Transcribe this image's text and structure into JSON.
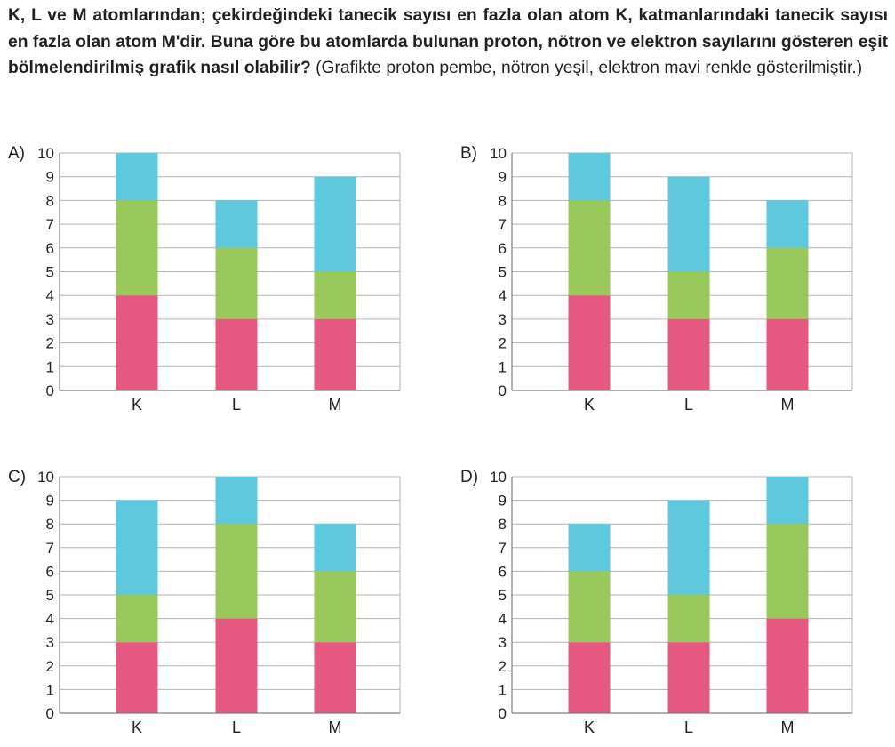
{
  "question": {
    "bold_text": "K, L ve M atomlarından; çekirdeğindeki tanecik sayısı en fazla olan atom K, katmanlarındaki tanecik sayısı en fazla olan atom M'dir. Buna göre bu atomlarda bulunan proton, nötron ve elektron sayılarını gösteren eşit bölmelendirilmiş grafik nasıl olabilir?",
    "normal_text": " (Grafikte proton pembe, nötron yeşil, elektron mavi renkle gösterilmiştir.)"
  },
  "colors": {
    "proton": "#e5587f",
    "neutron": "#99c95b",
    "electron": "#5ec8dc",
    "grid": "#b3b3b3",
    "axis": "#7f7f7f"
  },
  "chart_data": [
    {
      "type": "bar",
      "stacked": true,
      "option_label": "A)",
      "categories": [
        "K",
        "L",
        "M"
      ],
      "ylim": [
        0,
        10
      ],
      "yticks": [
        "0",
        "1",
        "2",
        "3",
        "4",
        "5",
        "6",
        "7",
        "8",
        "9",
        "10"
      ],
      "series": [
        {
          "color_key": "proton",
          "values": [
            4,
            3,
            3
          ]
        },
        {
          "color_key": "neutron",
          "values": [
            4,
            3,
            2
          ]
        },
        {
          "color_key": "electron",
          "values": [
            2,
            2,
            4
          ]
        }
      ]
    },
    {
      "type": "bar",
      "stacked": true,
      "option_label": "B)",
      "categories": [
        "K",
        "L",
        "M"
      ],
      "ylim": [
        0,
        10
      ],
      "yticks": [
        "0",
        "1",
        "2",
        "3",
        "4",
        "5",
        "6",
        "7",
        "8",
        "9",
        "10"
      ],
      "series": [
        {
          "color_key": "proton",
          "values": [
            4,
            3,
            3
          ]
        },
        {
          "color_key": "neutron",
          "values": [
            4,
            2,
            3
          ]
        },
        {
          "color_key": "electron",
          "values": [
            2,
            4,
            2
          ]
        }
      ]
    },
    {
      "type": "bar",
      "stacked": true,
      "option_label": "C)",
      "categories": [
        "K",
        "L",
        "M"
      ],
      "ylim": [
        0,
        10
      ],
      "yticks": [
        "0",
        "1",
        "2",
        "3",
        "4",
        "5",
        "6",
        "7",
        "8",
        "9",
        "10"
      ],
      "series": [
        {
          "color_key": "proton",
          "values": [
            3,
            4,
            3
          ]
        },
        {
          "color_key": "neutron",
          "values": [
            2,
            4,
            3
          ]
        },
        {
          "color_key": "electron",
          "values": [
            4,
            2,
            2
          ]
        }
      ]
    },
    {
      "type": "bar",
      "stacked": true,
      "option_label": "D)",
      "categories": [
        "K",
        "L",
        "M"
      ],
      "ylim": [
        0,
        10
      ],
      "yticks": [
        "0",
        "1",
        "2",
        "3",
        "4",
        "5",
        "6",
        "7",
        "8",
        "9",
        "10"
      ],
      "series": [
        {
          "color_key": "proton",
          "values": [
            3,
            3,
            4
          ]
        },
        {
          "color_key": "neutron",
          "values": [
            3,
            2,
            4
          ]
        },
        {
          "color_key": "electron",
          "values": [
            2,
            4,
            2
          ]
        }
      ]
    }
  ]
}
